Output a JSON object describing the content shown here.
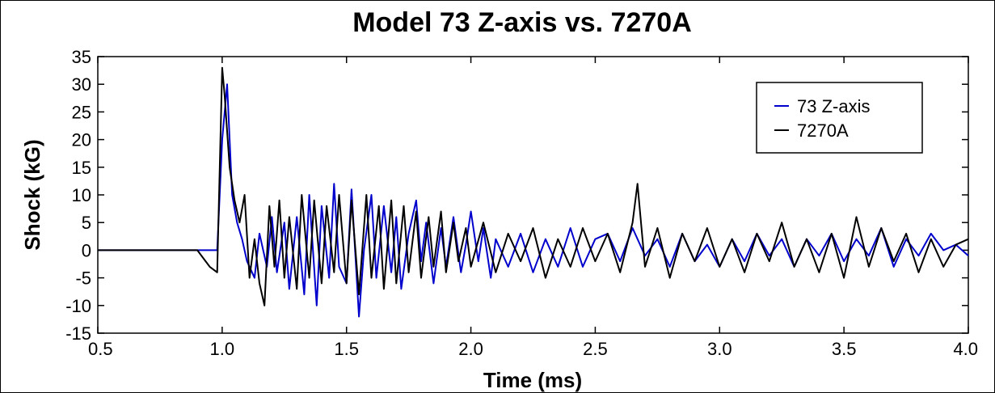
{
  "chart_data": {
    "type": "line",
    "title": "Model 73 Z-axis vs. 7270A",
    "xlabel": "Time  (ms)",
    "ylabel": "Shock  (kG)",
    "xlim": [
      0.5,
      4.0
    ],
    "ylim": [
      -15,
      35
    ],
    "xticks": [
      "0.5",
      "1.0",
      "1.5",
      "2.0",
      "2.5",
      "3.0",
      "3.5",
      "4.0"
    ],
    "yticks": [
      "-15",
      "-10",
      "-5",
      "0",
      "5",
      "10",
      "15",
      "20",
      "25",
      "30",
      "35"
    ],
    "grid": false,
    "legend_position": "top-right",
    "series": [
      {
        "name": "73 Z-axis",
        "color": "#0000cc",
        "x": [
          0.5,
          0.6,
          0.7,
          0.8,
          0.9,
          0.96,
          0.98,
          1.0,
          1.02,
          1.04,
          1.06,
          1.08,
          1.1,
          1.13,
          1.15,
          1.18,
          1.2,
          1.22,
          1.25,
          1.27,
          1.3,
          1.33,
          1.35,
          1.38,
          1.4,
          1.43,
          1.45,
          1.47,
          1.5,
          1.52,
          1.55,
          1.57,
          1.6,
          1.62,
          1.65,
          1.68,
          1.7,
          1.72,
          1.75,
          1.78,
          1.8,
          1.82,
          1.85,
          1.88,
          1.9,
          1.93,
          1.96,
          1.98,
          2.0,
          2.03,
          2.05,
          2.08,
          2.1,
          2.15,
          2.2,
          2.25,
          2.3,
          2.35,
          2.4,
          2.45,
          2.5,
          2.55,
          2.6,
          2.65,
          2.7,
          2.75,
          2.8,
          2.85,
          2.9,
          2.95,
          3.0,
          3.05,
          3.1,
          3.15,
          3.2,
          3.25,
          3.3,
          3.35,
          3.4,
          3.45,
          3.5,
          3.55,
          3.6,
          3.65,
          3.7,
          3.75,
          3.8,
          3.85,
          3.9,
          3.95,
          4.0
        ],
        "y": [
          0,
          0,
          0,
          0,
          0,
          0,
          0,
          20,
          30,
          10,
          5,
          2,
          -2,
          -5,
          3,
          -3,
          6,
          -4,
          5,
          -7,
          6,
          -8,
          10,
          -10,
          8,
          -5,
          12,
          -3,
          -6,
          11,
          -12,
          0,
          10,
          -5,
          8,
          -4,
          6,
          -7,
          3,
          9,
          -2,
          5,
          -6,
          4,
          -3,
          6,
          -4,
          1,
          7,
          -2,
          4,
          -5,
          2,
          -3,
          3,
          -4,
          2,
          -3,
          4,
          -3,
          2,
          3,
          -2,
          4,
          -1,
          2,
          -3,
          3,
          -2,
          1,
          -3,
          2,
          -2,
          3,
          -1,
          2,
          -3,
          2,
          -1,
          3,
          -2,
          2,
          -1,
          4,
          -3,
          2,
          -1,
          3,
          0,
          1,
          -1
        ]
      },
      {
        "name": "7270A",
        "color": "#000000",
        "x": [
          0.5,
          0.6,
          0.7,
          0.8,
          0.9,
          0.95,
          0.98,
          1.0,
          1.01,
          1.03,
          1.05,
          1.07,
          1.09,
          1.11,
          1.13,
          1.15,
          1.17,
          1.19,
          1.21,
          1.23,
          1.25,
          1.27,
          1.3,
          1.32,
          1.35,
          1.37,
          1.4,
          1.42,
          1.45,
          1.47,
          1.5,
          1.52,
          1.55,
          1.58,
          1.6,
          1.63,
          1.65,
          1.68,
          1.7,
          1.73,
          1.75,
          1.78,
          1.8,
          1.83,
          1.85,
          1.88,
          1.9,
          1.93,
          1.95,
          1.98,
          2.0,
          2.05,
          2.1,
          2.15,
          2.2,
          2.25,
          2.3,
          2.35,
          2.4,
          2.45,
          2.5,
          2.55,
          2.6,
          2.65,
          2.67,
          2.7,
          2.75,
          2.8,
          2.85,
          2.9,
          2.95,
          3.0,
          3.05,
          3.1,
          3.15,
          3.2,
          3.25,
          3.3,
          3.35,
          3.4,
          3.45,
          3.5,
          3.55,
          3.6,
          3.65,
          3.7,
          3.75,
          3.8,
          3.85,
          3.9,
          3.95,
          4.0
        ],
        "y": [
          0,
          0,
          0,
          0,
          0,
          -3,
          -4,
          33,
          28,
          15,
          9,
          5,
          10,
          -5,
          2,
          -6,
          -10,
          8,
          -3,
          9,
          -5,
          6,
          -7,
          10,
          -5,
          9,
          -6,
          8,
          -4,
          10,
          -6,
          9,
          -8,
          10,
          -5,
          8,
          -7,
          9,
          -6,
          8,
          -4,
          7,
          -5,
          6,
          -3,
          7,
          -4,
          5,
          -2,
          4,
          -3,
          5,
          -4,
          3,
          -2,
          4,
          -5,
          2,
          -3,
          4,
          -2,
          3,
          -4,
          5,
          12,
          -3,
          4,
          -5,
          3,
          -2,
          4,
          -3,
          2,
          -4,
          3,
          -2,
          5,
          -3,
          2,
          -4,
          3,
          -5,
          6,
          -3,
          4,
          -2,
          3,
          -4,
          2,
          -3,
          1,
          2
        ]
      }
    ]
  }
}
